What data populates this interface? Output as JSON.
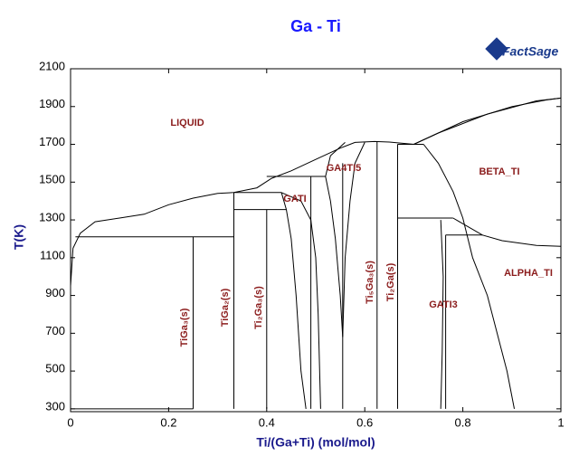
{
  "chart_data": {
    "type": "line",
    "title": "Ga - Ti",
    "logo": "FactSage",
    "x_label": "Ti/(Ga+Ti) (mol/mol)",
    "y_label": "T(K)",
    "xlim": [
      0,
      1
    ],
    "ylim": [
      285,
      2100
    ],
    "xticks": [
      0,
      0.2,
      0.4,
      0.6,
      0.8,
      1
    ],
    "yticks": [
      300,
      500,
      700,
      900,
      1100,
      1300,
      1500,
      1700,
      1900,
      2100
    ],
    "annotations": [
      "LIQUID",
      "GA4TI5",
      "GATI",
      "BETA_TI",
      "ALPHA_TI",
      "GATI3",
      "TiGa₃(s)",
      "TiGa₂(s)",
      "Ti₂Ga₃(s)",
      "Ti₅Ga₃(s)",
      "Ti₂Ga(s)"
    ],
    "series": [
      {
        "color": "#000000",
        "x": [
          0,
          0.005,
          0.02,
          0.05,
          0.1,
          0.15,
          0.2,
          0.25,
          0.3,
          0.333,
          0.38,
          0.41,
          0.45,
          0.5,
          0.55,
          0.58,
          0.62,
          0.65,
          0.7,
          0.75,
          0.85,
          0.95,
          1
        ],
        "values": [
          950,
          1150,
          1230,
          1290,
          1310,
          1330,
          1380,
          1415,
          1440,
          1445,
          1470,
          1520,
          1560,
          1620,
          1680,
          1710,
          1715,
          1712,
          1700,
          1760,
          1860,
          1930,
          1945
        ]
      },
      {
        "color": "#000000",
        "x": [
          0.7,
          0.8,
          0.9,
          0.97,
          1
        ],
        "values": [
          1700,
          1820,
          1900,
          1935,
          1945
        ]
      },
      {
        "color": "#000000",
        "x": [
          0.01,
          0.333
        ],
        "values": [
          1210,
          1210
        ]
      },
      {
        "color": "#000000",
        "x": [
          0,
          0.25
        ],
        "values": [
          300,
          300
        ]
      },
      {
        "color": "#000000",
        "x": [
          0.25,
          0.25
        ],
        "values": [
          300,
          1210
        ]
      },
      {
        "color": "#000000",
        "x": [
          0.333,
          0.333
        ],
        "values": [
          300,
          1445
        ]
      },
      {
        "color": "#000000",
        "x": [
          0.333,
          0.43
        ],
        "values": [
          1445,
          1445
        ]
      },
      {
        "color": "#000000",
        "x": [
          0.333,
          0.44
        ],
        "values": [
          1355,
          1355
        ]
      },
      {
        "color": "#000000",
        "x": [
          0.4,
          0.4
        ],
        "values": [
          300,
          1355
        ]
      },
      {
        "color": "#000000",
        "x": [
          0.43,
          0.44,
          0.45,
          0.46,
          0.47,
          0.48
        ],
        "values": [
          1445,
          1355,
          1200,
          900,
          500,
          300
        ]
      },
      {
        "color": "#000000",
        "x": [
          0.43,
          0.47,
          0.49,
          0.5,
          0.505,
          0.51
        ],
        "values": [
          1445,
          1400,
          1300,
          1100,
          800,
          300
        ]
      },
      {
        "color": "#000000",
        "x": [
          0.4,
          0.52
        ],
        "values": [
          1530,
          1530
        ]
      },
      {
        "color": "#000000",
        "x": [
          0.49,
          0.49
        ],
        "values": [
          300,
          1530
        ]
      },
      {
        "color": "#000000",
        "x": [
          0.555,
          0.555
        ],
        "values": [
          300,
          1600
        ]
      },
      {
        "color": "#000000",
        "x": [
          0.52,
          0.53,
          0.54,
          0.55,
          0.555,
          0.56,
          0.57,
          0.58,
          0.6
        ],
        "values": [
          1530,
          1400,
          1200,
          900,
          680,
          1100,
          1400,
          1600,
          1710
        ]
      },
      {
        "color": "#000000",
        "x": [
          0.52,
          0.53,
          0.56
        ],
        "values": [
          1530,
          1640,
          1710
        ]
      },
      {
        "color": "#000000",
        "x": [
          0.625,
          0.625
        ],
        "values": [
          300,
          1715
        ]
      },
      {
        "color": "#000000",
        "x": [
          0.667,
          0.667
        ],
        "values": [
          300,
          1700
        ]
      },
      {
        "color": "#000000",
        "x": [
          0.667,
          0.72
        ],
        "values": [
          1700,
          1700
        ]
      },
      {
        "color": "#000000",
        "x": [
          0.667,
          0.78
        ],
        "values": [
          1310,
          1310
        ]
      },
      {
        "color": "#000000",
        "x": [
          0.765,
          0.84
        ],
        "values": [
          1220,
          1220
        ]
      },
      {
        "color": "#000000",
        "x": [
          0.72,
          0.75,
          0.78,
          0.8,
          0.82,
          0.85,
          0.87,
          0.89,
          0.905
        ],
        "values": [
          1700,
          1600,
          1450,
          1310,
          1100,
          900,
          700,
          500,
          300
        ]
      },
      {
        "color": "#000000",
        "x": [
          0.78,
          0.84,
          0.88,
          0.95,
          1
        ],
        "values": [
          1310,
          1220,
          1190,
          1165,
          1160
        ]
      },
      {
        "color": "#000000",
        "x": [
          0.755,
          0.76,
          0.758,
          0.755
        ],
        "values": [
          1300,
          1000,
          600,
          300
        ]
      },
      {
        "color": "#000000",
        "x": [
          0.765,
          0.765
        ],
        "values": [
          1220,
          300
        ]
      }
    ]
  }
}
